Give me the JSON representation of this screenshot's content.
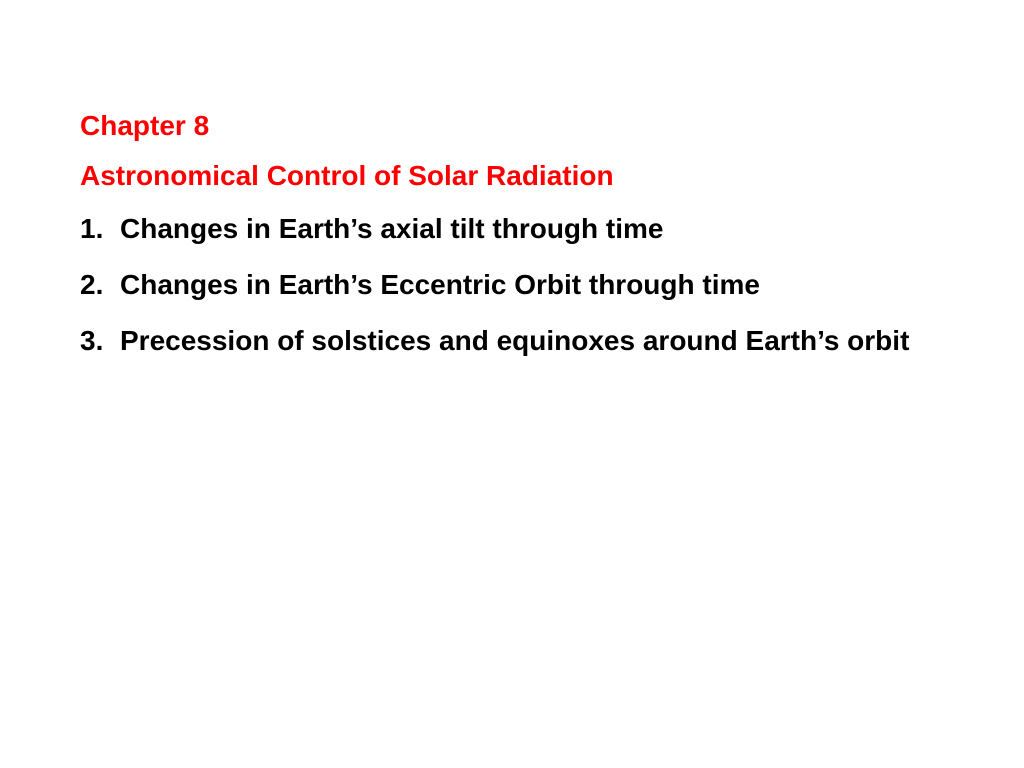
{
  "slide": {
    "chapter": "Chapter 8",
    "title": "Astronomical Control of Solar Radiation",
    "items": [
      "Changes in Earth’s axial tilt through time",
      "Changes in Earth’s Eccentric Orbit through time",
      "Precession of solstices and equinoxes around Earth’s orbit"
    ],
    "colors": {
      "heading": "#ff0000",
      "body": "#000000",
      "background": "#ffffff"
    },
    "typography": {
      "font_family": "Arial",
      "font_size_pt": 21,
      "font_weight": "bold"
    }
  }
}
